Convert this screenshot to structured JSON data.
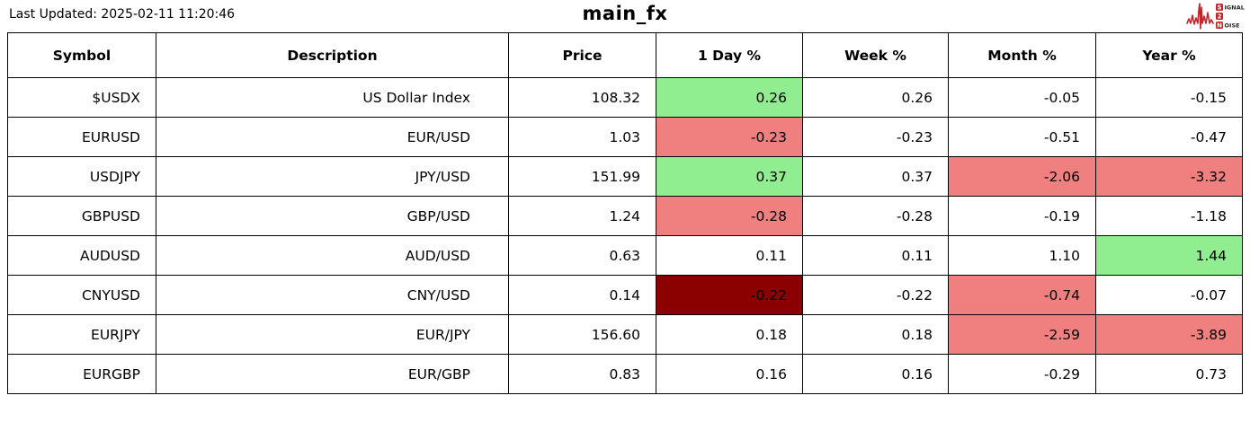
{
  "header": {
    "last_updated": "Last Updated: 2025-02-11 11:20:46",
    "title": "main_fx",
    "logo": {
      "word1_initial": "S",
      "word1_rest": "IGNAL",
      "word2": "2",
      "word3_initial": "N",
      "word3_rest": "OISE"
    }
  },
  "colors": {
    "positive": "#90EE90",
    "negative": "#F08080",
    "strong_negative": "#8B0000",
    "logo_red": "#C0262B",
    "border": "#000000"
  },
  "table": {
    "columns": [
      "Symbol",
      "Description",
      "Price",
      "1 Day %",
      "Week %",
      "Month %",
      "Year %"
    ],
    "rows": [
      {
        "cells": [
          {
            "text": "$USDX"
          },
          {
            "text": "US Dollar Index"
          },
          {
            "text": "108.32"
          },
          {
            "text": "0.26",
            "bg": "positive"
          },
          {
            "text": "0.26"
          },
          {
            "text": "-0.05"
          },
          {
            "text": "-0.15"
          }
        ]
      },
      {
        "cells": [
          {
            "text": "EURUSD"
          },
          {
            "text": "EUR/USD"
          },
          {
            "text": "1.03"
          },
          {
            "text": "-0.23",
            "bg": "negative"
          },
          {
            "text": "-0.23"
          },
          {
            "text": "-0.51"
          },
          {
            "text": "-0.47"
          }
        ]
      },
      {
        "cells": [
          {
            "text": "USDJPY"
          },
          {
            "text": "JPY/USD"
          },
          {
            "text": "151.99"
          },
          {
            "text": "0.37",
            "bg": "positive"
          },
          {
            "text": "0.37"
          },
          {
            "text": "-2.06",
            "bg": "negative"
          },
          {
            "text": "-3.32",
            "bg": "negative"
          }
        ]
      },
      {
        "cells": [
          {
            "text": "GBPUSD"
          },
          {
            "text": "GBP/USD"
          },
          {
            "text": "1.24"
          },
          {
            "text": "-0.28",
            "bg": "negative"
          },
          {
            "text": "-0.28"
          },
          {
            "text": "-0.19"
          },
          {
            "text": "-1.18"
          }
        ]
      },
      {
        "cells": [
          {
            "text": "AUDUSD"
          },
          {
            "text": "AUD/USD"
          },
          {
            "text": "0.63"
          },
          {
            "text": "0.11"
          },
          {
            "text": "0.11"
          },
          {
            "text": "1.10"
          },
          {
            "text": "1.44",
            "bg": "positive"
          }
        ]
      },
      {
        "cells": [
          {
            "text": "CNYUSD"
          },
          {
            "text": "CNY/USD"
          },
          {
            "text": "0.14"
          },
          {
            "text": "-0.22",
            "bg": "strong_negative"
          },
          {
            "text": "-0.22"
          },
          {
            "text": "-0.74",
            "bg": "negative"
          },
          {
            "text": "-0.07"
          }
        ]
      },
      {
        "cells": [
          {
            "text": "EURJPY"
          },
          {
            "text": "EUR/JPY"
          },
          {
            "text": "156.60"
          },
          {
            "text": "0.18"
          },
          {
            "text": "0.18"
          },
          {
            "text": "-2.59",
            "bg": "negative"
          },
          {
            "text": "-3.89",
            "bg": "negative"
          }
        ]
      },
      {
        "cells": [
          {
            "text": "EURGBP"
          },
          {
            "text": "EUR/GBP"
          },
          {
            "text": "0.83"
          },
          {
            "text": "0.16"
          },
          {
            "text": "0.16"
          },
          {
            "text": "-0.29"
          },
          {
            "text": "0.73"
          }
        ]
      }
    ]
  },
  "chart_data": {
    "type": "table",
    "title": "main_fx",
    "columns": [
      "Symbol",
      "Description",
      "Price",
      "1 Day %",
      "Week %",
      "Month %",
      "Year %"
    ],
    "rows": [
      [
        "$USDX",
        "US Dollar Index",
        108.32,
        0.26,
        0.26,
        -0.05,
        -0.15
      ],
      [
        "EURUSD",
        "EUR/USD",
        1.03,
        -0.23,
        -0.23,
        -0.51,
        -0.47
      ],
      [
        "USDJPY",
        "JPY/USD",
        151.99,
        0.37,
        0.37,
        -2.06,
        -3.32
      ],
      [
        "GBPUSD",
        "GBP/USD",
        1.24,
        -0.28,
        -0.28,
        -0.19,
        -1.18
      ],
      [
        "AUDUSD",
        "AUD/USD",
        0.63,
        0.11,
        0.11,
        1.1,
        1.44
      ],
      [
        "CNYUSD",
        "CNY/USD",
        0.14,
        -0.22,
        -0.22,
        -0.74,
        -0.07
      ],
      [
        "EURJPY",
        "EUR/JPY",
        156.6,
        0.18,
        0.18,
        -2.59,
        -3.89
      ],
      [
        "EURGBP",
        "EUR/GBP",
        0.83,
        0.16,
        0.16,
        -0.29,
        0.73
      ]
    ],
    "highlight_legend": {
      "positive": "#90EE90 light green cell background",
      "negative": "#F08080 light red cell background",
      "strong_negative": "#8B0000 dark red cell background"
    }
  }
}
